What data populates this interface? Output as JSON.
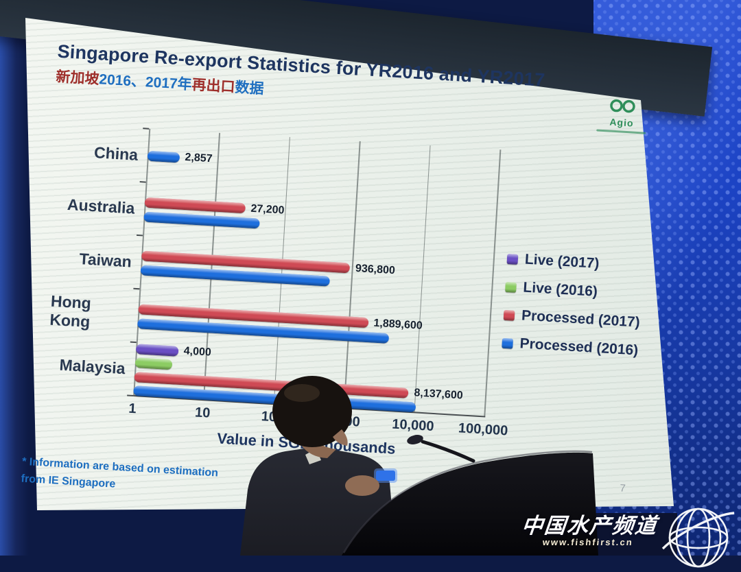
{
  "colors": {
    "title_text": "#1e3560",
    "footnote_text": "#1d6ec0",
    "backdrop_blue": "#1c43c4",
    "logo_green": "#2f8e5a"
  },
  "slide": {
    "title": "Singapore Re-export Statistics for YR2016 and YR2017",
    "subtitle_parts": [
      {
        "text": "新加坡",
        "color": "#9e2f2b"
      },
      {
        "text": "2016、2017年",
        "color": "#1f6fc0"
      },
      {
        "text": "再出口",
        "color": "#9e2f2b"
      },
      {
        "text": "数据",
        "color": "#1f6fc0"
      }
    ],
    "logo_text": "Agio",
    "footnote_line1": "* Information are based on estimation",
    "footnote_line2": "from IE Singapore",
    "page_number": "7"
  },
  "chart_data": {
    "type": "bar",
    "orientation": "horizontal",
    "x_scale": "log",
    "title": "Singapore Re-export Statistics for YR2016 and YR2017",
    "xlabel": "Value in SGD Thousands",
    "x_ticks": [
      "1",
      "10",
      "100",
      "1,000",
      "10,000",
      "100,000"
    ],
    "xlim_thousands": [
      1,
      100000
    ],
    "axis_unit_divisor": 1000,
    "grid": true,
    "legend_position": "right",
    "categories": [
      "China",
      "Australia",
      "Taiwan",
      "Hong Kong",
      "Malaysia"
    ],
    "series": [
      {
        "name": "Live (2017)",
        "color": "#6a4fc3",
        "values": [
          null,
          null,
          null,
          null,
          4000
        ],
        "labels": [
          null,
          null,
          null,
          null,
          "4,000"
        ]
      },
      {
        "name": "Live (2016)",
        "color": "#8ccc63",
        "values": [
          null,
          null,
          null,
          null,
          3400
        ],
        "labels": [
          null,
          null,
          null,
          null,
          null
        ]
      },
      {
        "name": "Processed (2017)",
        "color": "#cf4a55",
        "values": [
          null,
          27200,
          936800,
          1889600,
          8137600
        ],
        "labels": [
          null,
          "27,200",
          "936,800",
          "1,889,600",
          "8,137,600"
        ]
      },
      {
        "name": "Processed (2016)",
        "color": "#1e6fdd",
        "values": [
          2857,
          45000,
          500000,
          3800000,
          10500000
        ],
        "labels": [
          "2,857",
          null,
          null,
          null,
          null
        ]
      }
    ]
  },
  "watermark": {
    "line1": "中国水产频道",
    "line2": "www.fishfirst.cn"
  }
}
